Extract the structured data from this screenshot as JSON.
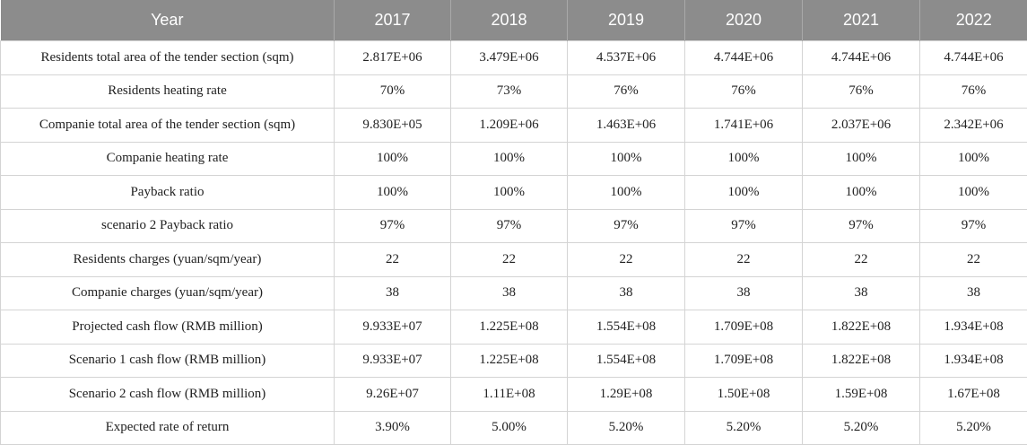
{
  "table": {
    "headers": [
      "Year",
      "2017",
      "2018",
      "2019",
      "2020",
      "2021",
      "2022"
    ],
    "rows": [
      [
        "Residents total area of the tender section (sqm)",
        "2.817E+06",
        "3.479E+06",
        "4.537E+06",
        "4.744E+06",
        "4.744E+06",
        "4.744E+06"
      ],
      [
        "Residents heating rate",
        "70%",
        "73%",
        "76%",
        "76%",
        "76%",
        "76%"
      ],
      [
        "Companie total area of the tender section (sqm)",
        "9.830E+05",
        "1.209E+06",
        "1.463E+06",
        "1.741E+06",
        "2.037E+06",
        "2.342E+06"
      ],
      [
        "Companie heating rate",
        "100%",
        "100%",
        "100%",
        "100%",
        "100%",
        "100%"
      ],
      [
        "Payback ratio",
        "100%",
        "100%",
        "100%",
        "100%",
        "100%",
        "100%"
      ],
      [
        "scenario 2 Payback ratio",
        "97%",
        "97%",
        "97%",
        "97%",
        "97%",
        "97%"
      ],
      [
        "Residents charges (yuan/sqm/year)",
        "22",
        "22",
        "22",
        "22",
        "22",
        "22"
      ],
      [
        "Companie charges (yuan/sqm/year)",
        "38",
        "38",
        "38",
        "38",
        "38",
        "38"
      ],
      [
        "Projected cash flow (RMB million)",
        "9.933E+07",
        "1.225E+08",
        "1.554E+08",
        "1.709E+08",
        "1.822E+08",
        "1.934E+08"
      ],
      [
        "Scenario 1 cash flow (RMB million)",
        "9.933E+07",
        "1.225E+08",
        "1.554E+08",
        "1.709E+08",
        "1.822E+08",
        "1.934E+08"
      ],
      [
        "Scenario 2 cash flow (RMB million)",
        "9.26E+07",
        "1.11E+08",
        "1.29E+08",
        "1.50E+08",
        "1.59E+08",
        "1.67E+08"
      ],
      [
        "Expected rate of return",
        "3.90%",
        "5.00%",
        "5.20%",
        "5.20%",
        "5.20%",
        "5.20%"
      ]
    ]
  }
}
